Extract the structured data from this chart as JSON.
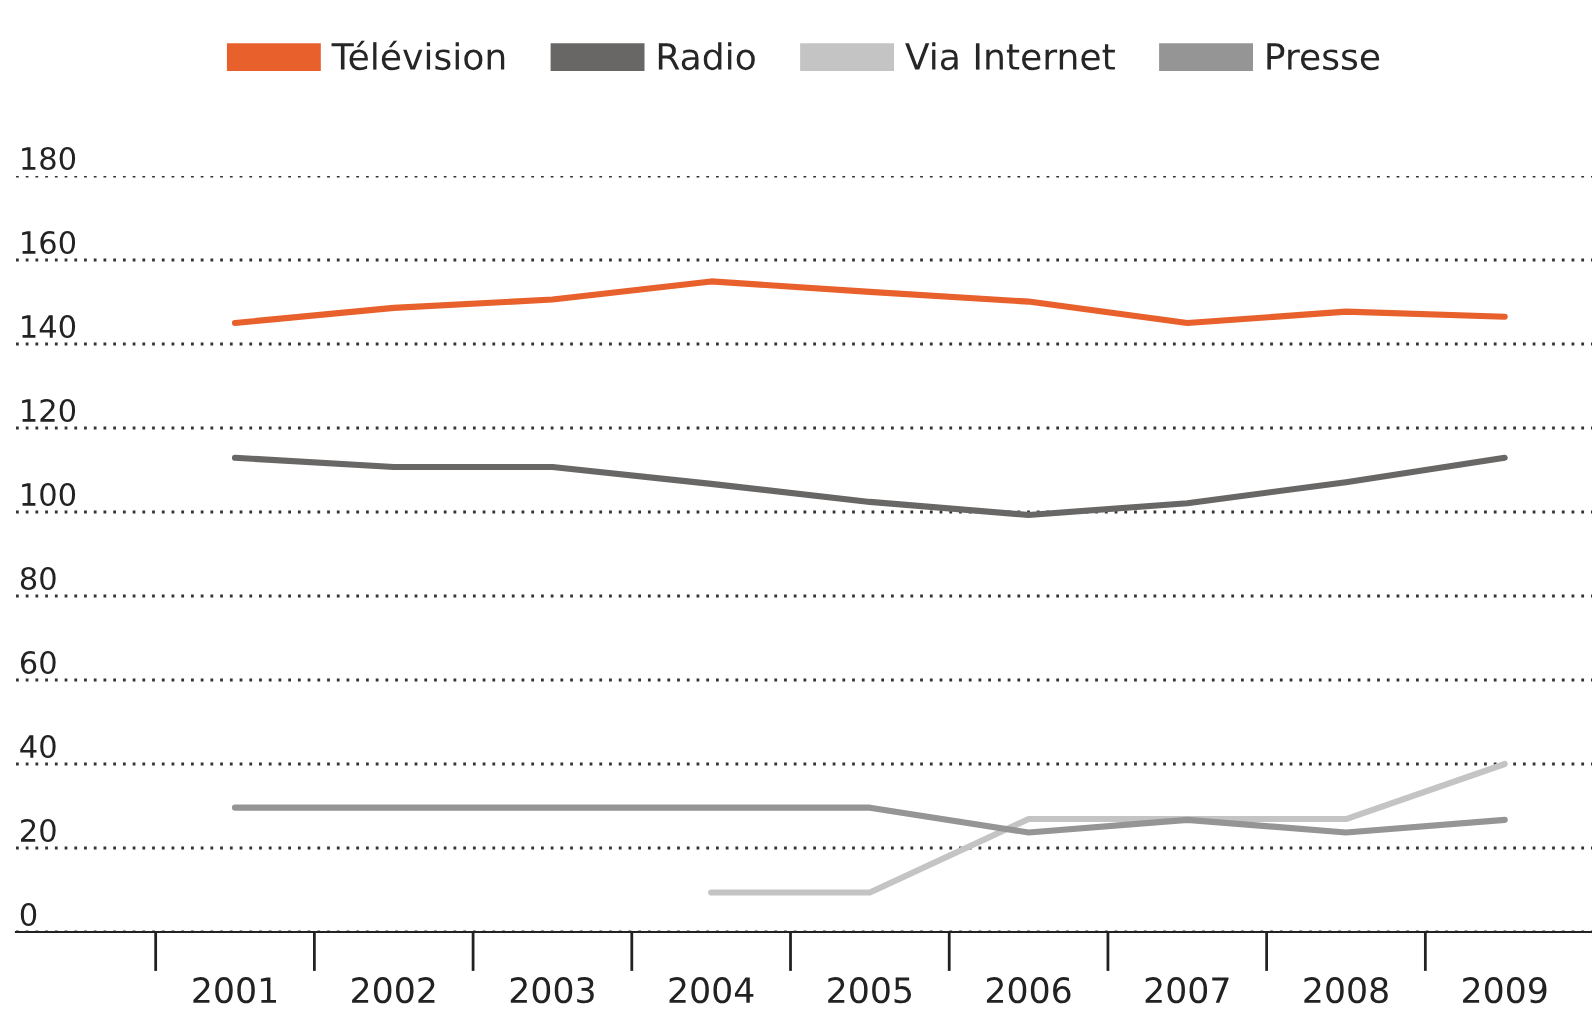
{
  "chart_data": {
    "type": "line",
    "categories": [
      "2001",
      "2002",
      "2003",
      "2004",
      "2005",
      "2006",
      "2007",
      "2008",
      "2009"
    ],
    "series": [
      {
        "name": "Télévision",
        "color": "#e8602c",
        "values": [
          145,
          148.6,
          150.6,
          154.9,
          152.4,
          150.1,
          145,
          147.7,
          146.5
        ]
      },
      {
        "name": "Radio",
        "color": "#686766",
        "values": [
          112.9,
          110.7,
          110.7,
          106.7,
          102.4,
          99.3,
          102.1,
          107.1,
          112.9
        ]
      },
      {
        "name": "Via Internet",
        "color": "#c4c4c4",
        "values": [
          null,
          null,
          null,
          9.4,
          9.4,
          26.9,
          26.9,
          26.9,
          40
        ]
      },
      {
        "name": "Presse",
        "color": "#959595",
        "values": [
          29.6,
          29.6,
          29.6,
          29.6,
          29.6,
          23.7,
          26.7,
          23.7,
          26.7
        ]
      }
    ],
    "ylim": [
      0,
      180
    ],
    "yticks": [
      0,
      20,
      40,
      60,
      80,
      100,
      120,
      140,
      160,
      180
    ],
    "grid": "y",
    "legend": "top",
    "marker": "none",
    "line_style": "solid"
  }
}
